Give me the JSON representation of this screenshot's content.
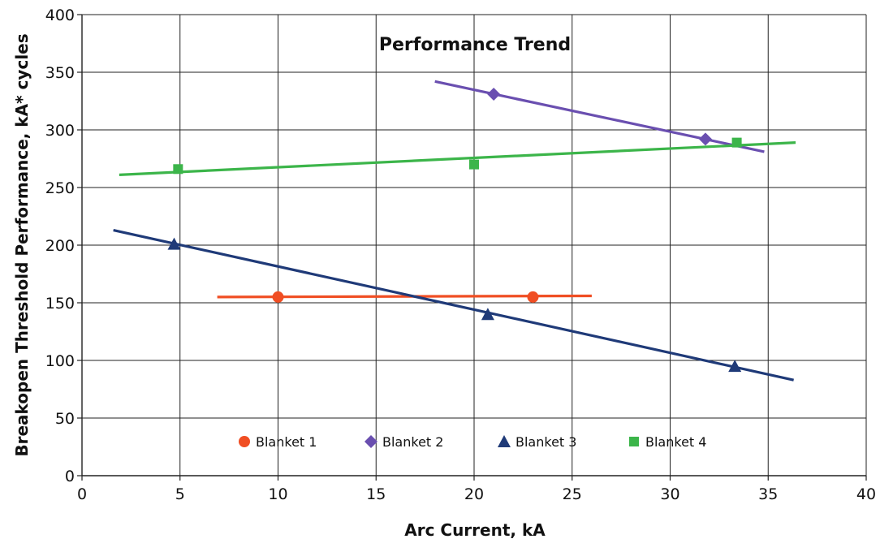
{
  "chart_data": {
    "type": "scatter",
    "title": "Performance Trend",
    "xlabel": "Arc Current, kA",
    "ylabel": "Breakopen Threshold Performance, kA* cycles",
    "xlim": [
      0,
      40
    ],
    "ylim": [
      0,
      400
    ],
    "x_ticks": [
      0,
      5,
      10,
      15,
      20,
      25,
      30,
      35,
      40
    ],
    "y_ticks": [
      0,
      50,
      100,
      150,
      200,
      250,
      300,
      350,
      400
    ],
    "grid": true,
    "legend_position": "bottom-inside",
    "series": [
      {
        "name": "Blanket 1",
        "color": "#f04e23",
        "marker": "circle",
        "points": [
          [
            10.0,
            155
          ],
          [
            23.0,
            155
          ]
        ],
        "trendline": [
          [
            6.9,
            155
          ],
          [
            26.0,
            156
          ]
        ]
      },
      {
        "name": "Blanket 2",
        "color": "#6a4fb0",
        "marker": "diamond",
        "points": [
          [
            21.0,
            331
          ],
          [
            31.8,
            292
          ]
        ],
        "trendline": [
          [
            18.0,
            342
          ],
          [
            34.8,
            281
          ]
        ]
      },
      {
        "name": "Blanket 3",
        "color": "#1f3a78",
        "marker": "triangle",
        "points": [
          [
            4.7,
            201
          ],
          [
            20.7,
            140
          ],
          [
            33.3,
            95
          ]
        ],
        "trendline": [
          [
            1.6,
            213
          ],
          [
            36.3,
            83
          ]
        ]
      },
      {
        "name": "Blanket 4",
        "color": "#3cb54a",
        "marker": "square",
        "points": [
          [
            4.9,
            266
          ],
          [
            20.0,
            270
          ],
          [
            33.4,
            289
          ]
        ],
        "trendline": [
          [
            1.9,
            261
          ],
          [
            36.4,
            289
          ]
        ]
      }
    ]
  }
}
